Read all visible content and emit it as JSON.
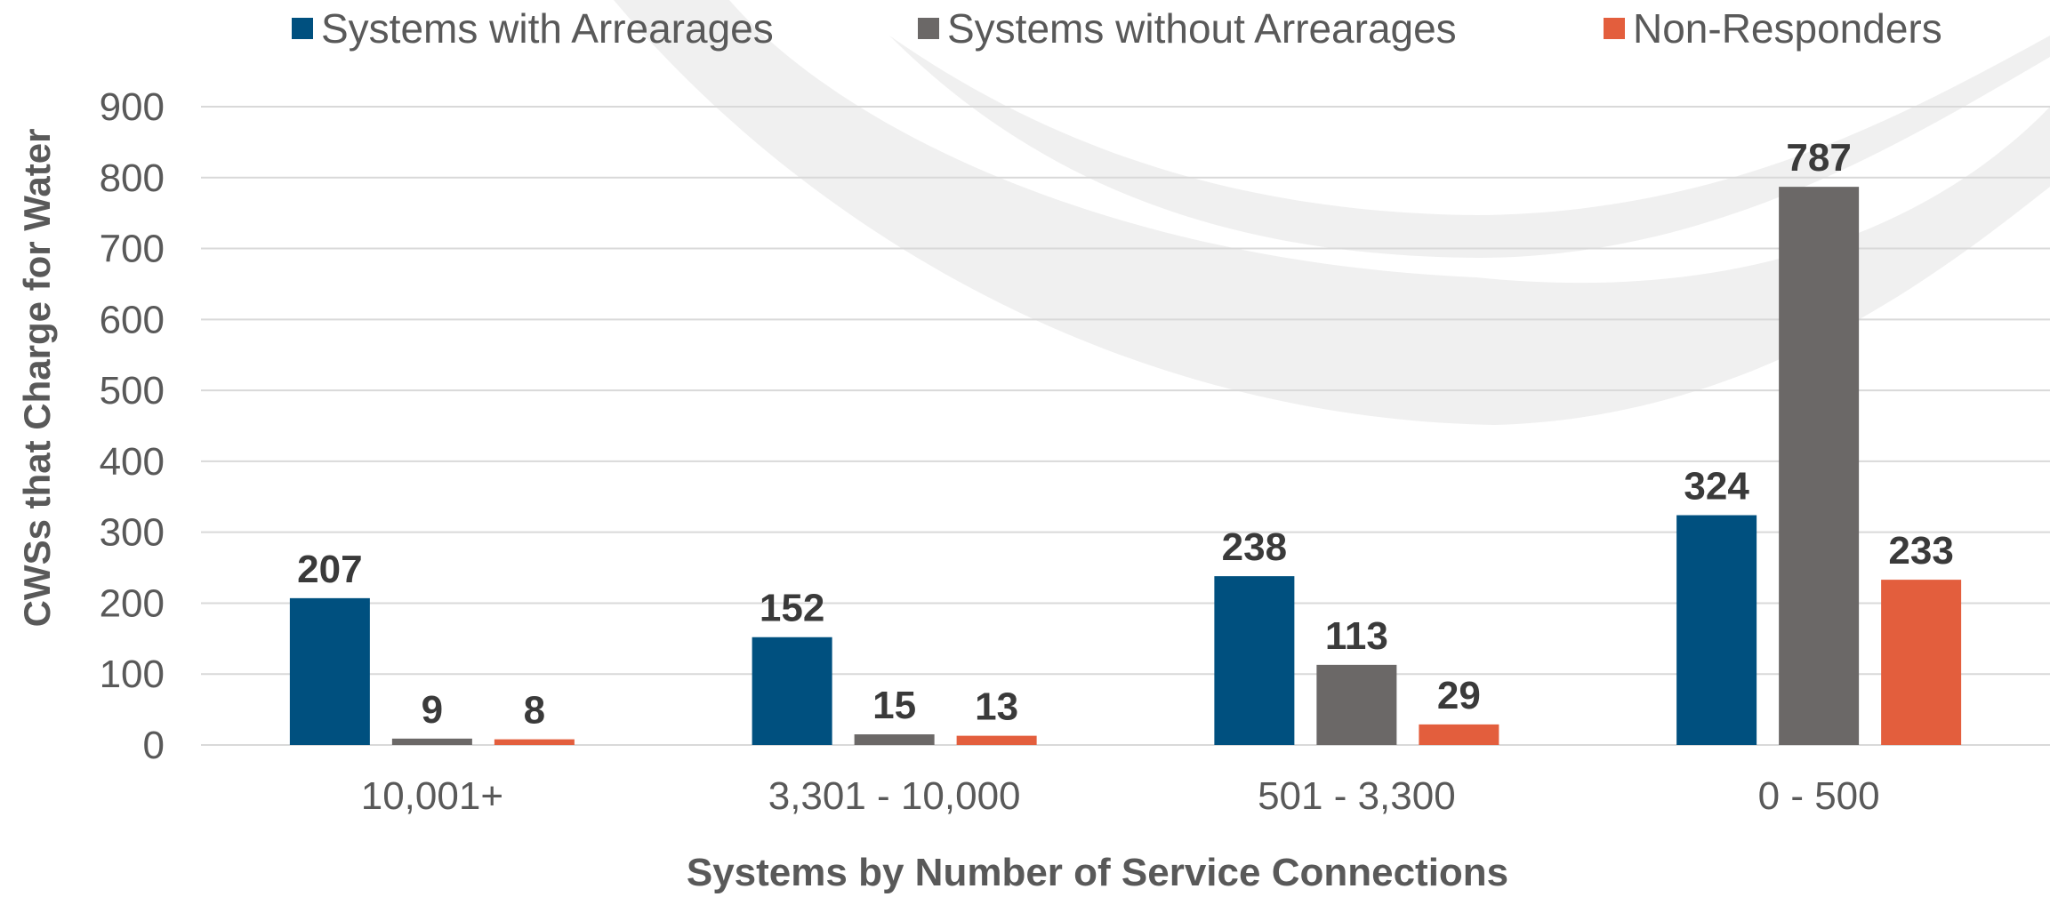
{
  "chart_data": {
    "type": "bar",
    "title": "",
    "xlabel": "Systems by Number of Service Connections",
    "ylabel": "CWSs that Charge for Water",
    "categories": [
      "10,001+",
      "3,301 - 10,000",
      "501 - 3,300",
      "0 - 500"
    ],
    "series": [
      {
        "name": "Systems with Arrearages",
        "values": [
          207,
          152,
          238,
          324
        ],
        "color": "#00507F"
      },
      {
        "name": "Systems without Arrearages",
        "values": [
          9,
          15,
          113,
          787
        ],
        "color": "#6B6867"
      },
      {
        "name": "Non-Responders",
        "values": [
          8,
          13,
          29,
          233
        ],
        "color": "#E35E3D"
      }
    ],
    "ylim": [
      0,
      900
    ],
    "yticks": [
      0,
      100,
      200,
      300,
      400,
      500,
      600,
      700,
      800,
      900
    ],
    "grid": true,
    "legend_position": "top",
    "data_labels": true
  }
}
